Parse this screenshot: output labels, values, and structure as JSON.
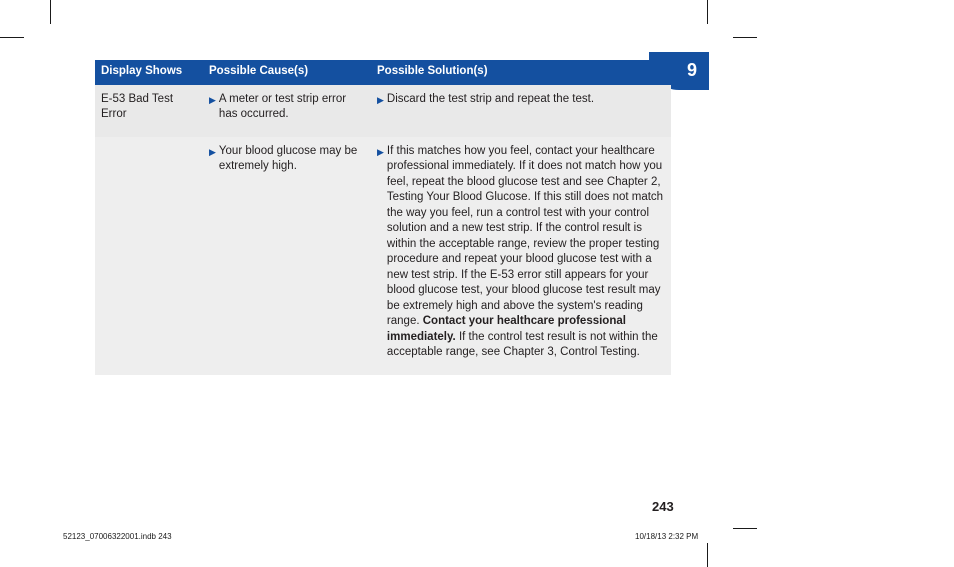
{
  "colors": {
    "header_bg": "#1450a0",
    "header_fg": "#ffffff",
    "row_a_bg": "#e9e9e9",
    "row_b_bg": "#eeeeee",
    "text": "#231f20",
    "bullet_triangle": "#1450a0"
  },
  "chapter": {
    "number": "9"
  },
  "page_number": "243",
  "footer": {
    "file": "52123_07006322001.indb   243",
    "date": "10/18/13   2:32 PM"
  },
  "table": {
    "headers": {
      "display_shows": "Display Shows",
      "possible_causes": "Possible Cause(s)",
      "possible_solutions": "Possible Solution(s)"
    },
    "rows": [
      {
        "display": "E-53 Bad Test Error",
        "cause": "A meter or test strip error has occurred.",
        "solution_plain": "Discard the test strip and repeat the test."
      },
      {
        "display": "",
        "cause": "Your blood glucose may be extremely high.",
        "solution_pre": "If this matches how you feel, contact your healthcare professional immediately. If it does not match how you feel, repeat the blood glucose test and see Chapter 2, Testing Your Blood Glucose. If this still does not match the way you feel, run a control test with your control solution and a new test strip. If the control result is within the acceptable range, review the proper testing procedure and repeat your blood glucose test with a new test strip. If the E-53 error still appears for your blood glucose test, your blood glucose test result may be extremely high and above the system's reading range. ",
        "solution_bold": "Contact your healthcare professional immediately.",
        "solution_post": " If the control test result is not within the acceptable range, see Chapter 3, Control Testing."
      }
    ]
  }
}
